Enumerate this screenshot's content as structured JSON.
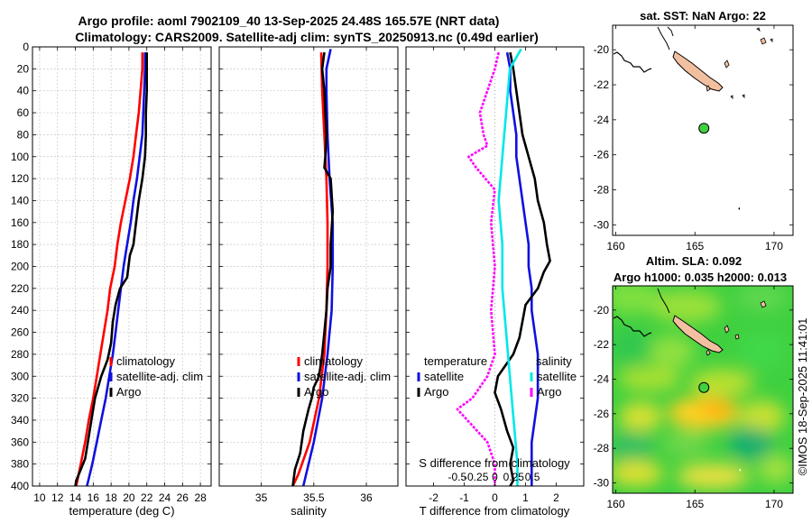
{
  "title_line1": "Argo profile: aoml 7902109_40 13-Sep-2025 24.48S 165.57E (NRT data)",
  "title_line2": "Climatology: CARS2009. Satellite-adj clim: synTS_20250913.nc (0.49d earlier)",
  "watermark": "©IMOS 18-Sep-2025 11:41:01",
  "colors": {
    "red": "#ff0000",
    "blue": "#1010e0",
    "black": "#000000",
    "magenta": "#ff00ff",
    "cyan": "#00e8e8",
    "land": "#f2c0a0",
    "ocean_green": "#40d040"
  },
  "chart_data": [
    {
      "id": "temperature",
      "type": "line",
      "xlabel": "temperature (deg C)",
      "ylabel": "",
      "xlim": [
        9.2,
        29.2
      ],
      "ylim": [
        400,
        0
      ],
      "xticks": [
        10,
        12,
        14,
        16,
        18,
        20,
        22,
        24,
        26,
        28
      ],
      "xtick_labels": [
        "10",
        "12",
        "14",
        "16",
        "18",
        "20",
        "22",
        "24",
        "26",
        "28"
      ],
      "yticks": [
        0,
        20,
        40,
        60,
        80,
        100,
        120,
        140,
        160,
        180,
        200,
        220,
        240,
        260,
        280,
        300,
        320,
        340,
        360,
        380,
        400
      ],
      "ytick_labels": [
        "0",
        "20",
        "40",
        "60",
        "80",
        "100",
        "120",
        "140",
        "160",
        "180",
        "200",
        "220",
        "240",
        "260",
        "280",
        "300",
        "320",
        "340",
        "360",
        "380",
        "400"
      ],
      "grid": true,
      "legend": [
        "climatology",
        "satellite-adj. clim",
        "Argo"
      ],
      "series": [
        {
          "name": "climatology",
          "color": "red",
          "points": [
            [
              21.5,
              5
            ],
            [
              21.5,
              20
            ],
            [
              21.3,
              40
            ],
            [
              21.1,
              60
            ],
            [
              20.8,
              80
            ],
            [
              20.5,
              100
            ],
            [
              20.1,
              120
            ],
            [
              19.6,
              140
            ],
            [
              19.1,
              160
            ],
            [
              18.7,
              180
            ],
            [
              18.4,
              200
            ],
            [
              17.9,
              220
            ],
            [
              17.6,
              240
            ],
            [
              17.2,
              260
            ],
            [
              16.8,
              280
            ],
            [
              16.4,
              300
            ],
            [
              16.0,
              320
            ],
            [
              15.5,
              340
            ],
            [
              15.1,
              360
            ],
            [
              14.6,
              380
            ],
            [
              14.1,
              400
            ]
          ]
        },
        {
          "name": "satellite-adj. clim",
          "color": "blue",
          "points": [
            [
              21.8,
              5
            ],
            [
              21.8,
              20
            ],
            [
              21.7,
              40
            ],
            [
              21.6,
              60
            ],
            [
              21.5,
              80
            ],
            [
              21.2,
              100
            ],
            [
              20.9,
              120
            ],
            [
              20.5,
              140
            ],
            [
              20.2,
              160
            ],
            [
              19.8,
              180
            ],
            [
              19.4,
              200
            ],
            [
              19.1,
              220
            ],
            [
              18.8,
              240
            ],
            [
              18.5,
              260
            ],
            [
              18.2,
              280
            ],
            [
              17.8,
              300
            ],
            [
              17.4,
              320
            ],
            [
              16.9,
              340
            ],
            [
              16.4,
              360
            ],
            [
              15.9,
              380
            ],
            [
              15.3,
              400
            ]
          ]
        },
        {
          "name": "Argo",
          "color": "black",
          "points": [
            [
              22.0,
              5
            ],
            [
              22.0,
              20
            ],
            [
              22.0,
              40
            ],
            [
              21.9,
              60
            ],
            [
              21.9,
              80
            ],
            [
              21.8,
              100
            ],
            [
              21.5,
              120
            ],
            [
              21.1,
              140
            ],
            [
              20.8,
              160
            ],
            [
              20.5,
              180
            ],
            [
              20.1,
              190
            ],
            [
              19.8,
              210
            ],
            [
              19.0,
              220
            ],
            [
              18.5,
              235
            ],
            [
              18.2,
              250
            ],
            [
              18.0,
              270
            ],
            [
              17.6,
              285
            ],
            [
              16.9,
              300
            ],
            [
              16.2,
              320
            ],
            [
              15.8,
              340
            ],
            [
              15.4,
              360
            ],
            [
              15.1,
              375
            ],
            [
              14.6,
              385
            ],
            [
              14.1,
              395
            ],
            [
              14.0,
              400
            ]
          ]
        }
      ]
    },
    {
      "id": "salinity",
      "type": "line",
      "xlabel": "salinity",
      "ylabel": "",
      "xlim": [
        34.6,
        36.3
      ],
      "ylim": [
        400,
        0
      ],
      "xticks": [
        35,
        35.5,
        36
      ],
      "xtick_labels": [
        "35",
        "35.5",
        "36"
      ],
      "grid": true,
      "legend": [
        "climatology",
        "satellite-adj. clim",
        "Argo"
      ],
      "series": [
        {
          "name": "climatology",
          "color": "red",
          "points": [
            [
              35.57,
              5
            ],
            [
              35.58,
              40
            ],
            [
              35.6,
              80
            ],
            [
              35.62,
              120
            ],
            [
              35.63,
              160
            ],
            [
              35.63,
              200
            ],
            [
              35.62,
              240
            ],
            [
              35.6,
              280
            ],
            [
              35.55,
              320
            ],
            [
              35.46,
              360
            ],
            [
              35.35,
              390
            ],
            [
              35.3,
              400
            ]
          ]
        },
        {
          "name": "satellite-adj. clim",
          "color": "blue",
          "points": [
            [
              35.66,
              2
            ],
            [
              35.62,
              20
            ],
            [
              35.62,
              40
            ],
            [
              35.63,
              80
            ],
            [
              35.65,
              120
            ],
            [
              35.68,
              160
            ],
            [
              35.68,
              200
            ],
            [
              35.67,
              240
            ],
            [
              35.63,
              280
            ],
            [
              35.58,
              320
            ],
            [
              35.5,
              360
            ],
            [
              35.4,
              400
            ]
          ]
        },
        {
          "name": "Argo",
          "color": "black",
          "points": [
            [
              35.6,
              5
            ],
            [
              35.58,
              20
            ],
            [
              35.6,
              40
            ],
            [
              35.61,
              60
            ],
            [
              35.62,
              80
            ],
            [
              35.61,
              100
            ],
            [
              35.6,
              110
            ],
            [
              35.66,
              120
            ],
            [
              35.68,
              150
            ],
            [
              35.66,
              180
            ],
            [
              35.66,
              200
            ],
            [
              35.63,
              220
            ],
            [
              35.62,
              240
            ],
            [
              35.6,
              260
            ],
            [
              35.58,
              280
            ],
            [
              35.55,
              300
            ],
            [
              35.5,
              310
            ],
            [
              35.48,
              320
            ],
            [
              35.45,
              330
            ],
            [
              35.4,
              350
            ],
            [
              35.37,
              370
            ],
            [
              35.32,
              385
            ],
            [
              35.3,
              400
            ]
          ]
        }
      ]
    },
    {
      "id": "difference",
      "type": "line",
      "xlabel": "T difference from climatology",
      "top_xlabel": "S difference from climatology",
      "xlim": [
        -2.9,
        2.9
      ],
      "ylim": [
        400,
        0
      ],
      "xticks": [
        -2,
        -1,
        0,
        1,
        2
      ],
      "xtick_labels": [
        "-2",
        "-1",
        "0",
        "1",
        "2"
      ],
      "top_ticks": [
        -0.5,
        -0.25,
        0,
        0.25,
        0.5
      ],
      "top_tick_labels": [
        "-0.5",
        "-0.25",
        "0",
        "0.25",
        "0.5"
      ],
      "legend_left_title": "temperature",
      "legend_right_title": "salinity",
      "legend_left": [
        "satellite",
        "Argo"
      ],
      "legend_right": [
        "satellite",
        "Argo"
      ],
      "series": [
        {
          "name": "T satellite",
          "color": "blue",
          "points": [
            [
              0.4,
              5
            ],
            [
              0.5,
              20
            ],
            [
              0.5,
              40
            ],
            [
              0.6,
              60
            ],
            [
              0.7,
              80
            ],
            [
              0.7,
              100
            ],
            [
              0.8,
              120
            ],
            [
              0.9,
              140
            ],
            [
              1.0,
              160
            ],
            [
              1.1,
              180
            ],
            [
              1.1,
              200
            ],
            [
              1.2,
              220
            ],
            [
              1.2,
              240
            ],
            [
              1.3,
              260
            ],
            [
              1.4,
              280
            ],
            [
              1.4,
              300
            ],
            [
              1.4,
              320
            ],
            [
              1.3,
              340
            ],
            [
              1.2,
              360
            ],
            [
              1.2,
              380
            ],
            [
              1.2,
              400
            ]
          ]
        },
        {
          "name": "T Argo",
          "color": "black",
          "points": [
            [
              0.5,
              5
            ],
            [
              0.6,
              20
            ],
            [
              0.7,
              40
            ],
            [
              0.8,
              60
            ],
            [
              0.9,
              80
            ],
            [
              1.1,
              100
            ],
            [
              1.3,
              120
            ],
            [
              1.4,
              140
            ],
            [
              1.6,
              160
            ],
            [
              1.7,
              180
            ],
            [
              1.8,
              195
            ],
            [
              1.6,
              205
            ],
            [
              1.4,
              220
            ],
            [
              1.0,
              235
            ],
            [
              0.9,
              250
            ],
            [
              0.8,
              265
            ],
            [
              0.6,
              280
            ],
            [
              0.1,
              300
            ],
            [
              0.0,
              315
            ],
            [
              0.2,
              330
            ],
            [
              0.4,
              350
            ],
            [
              0.6,
              365
            ],
            [
              0.5,
              380
            ],
            [
              0.6,
              395
            ],
            [
              0.5,
              400
            ]
          ]
        },
        {
          "name": "S satellite",
          "color": "cyan",
          "points": [
            [
              0.35,
              2
            ],
            [
              0.2,
              20
            ],
            [
              0.15,
              60
            ],
            [
              0.1,
              100
            ],
            [
              0.05,
              140
            ],
            [
              0.1,
              180
            ],
            [
              0.1,
              220
            ],
            [
              0.15,
              260
            ],
            [
              0.2,
              300
            ],
            [
              0.25,
              340
            ],
            [
              0.3,
              380
            ],
            [
              0.3,
              400
            ]
          ]
        },
        {
          "name": "S Argo",
          "color": "magenta",
          "points": [
            [
              0.05,
              5
            ],
            [
              0.0,
              20
            ],
            [
              -0.1,
              40
            ],
            [
              -0.2,
              60
            ],
            [
              -0.15,
              80
            ],
            [
              -0.1,
              90
            ],
            [
              -0.35,
              100
            ],
            [
              -0.25,
              110
            ],
            [
              0.0,
              130
            ],
            [
              -0.05,
              160
            ],
            [
              0.0,
              200
            ],
            [
              -0.05,
              240
            ],
            [
              0.0,
              280
            ],
            [
              -0.1,
              300
            ],
            [
              -0.3,
              320
            ],
            [
              -0.5,
              330
            ],
            [
              -0.3,
              345
            ],
            [
              -0.1,
              360
            ],
            [
              0.0,
              380
            ],
            [
              0.0,
              400
            ]
          ]
        }
      ]
    },
    {
      "id": "sst_map",
      "type": "map",
      "title": "sat. SST: NaN Argo: 22",
      "xlim": [
        159.8,
        171.2
      ],
      "ylim": [
        -30.6,
        -18.6
      ],
      "xticks": [
        160,
        165,
        170
      ],
      "xtick_labels": [
        "160",
        "165",
        "170"
      ],
      "yticks": [
        -20,
        -22,
        -24,
        -26,
        -28,
        -30
      ],
      "ytick_labels": [
        "-20",
        "-22",
        "-24",
        "-26",
        "-28",
        "-30"
      ],
      "marker": {
        "lon": 165.57,
        "lat": -24.48
      }
    },
    {
      "id": "sla_map",
      "type": "map",
      "title_line1": "Altim. SLA: 0.092",
      "title_line2": "Argo h1000: 0.035 h2000: 0.013",
      "xlim": [
        159.8,
        171.2
      ],
      "ylim": [
        -30.6,
        -18.6
      ],
      "xticks": [
        160,
        165,
        170
      ],
      "xtick_labels": [
        "160",
        "165",
        "170"
      ],
      "yticks": [
        -20,
        -22,
        -24,
        -26,
        -28,
        -30
      ],
      "ytick_labels": [
        "-20",
        "-22",
        "-24",
        "-26",
        "-28",
        "-30"
      ],
      "marker": {
        "lon": 165.57,
        "lat": -24.48
      }
    }
  ]
}
